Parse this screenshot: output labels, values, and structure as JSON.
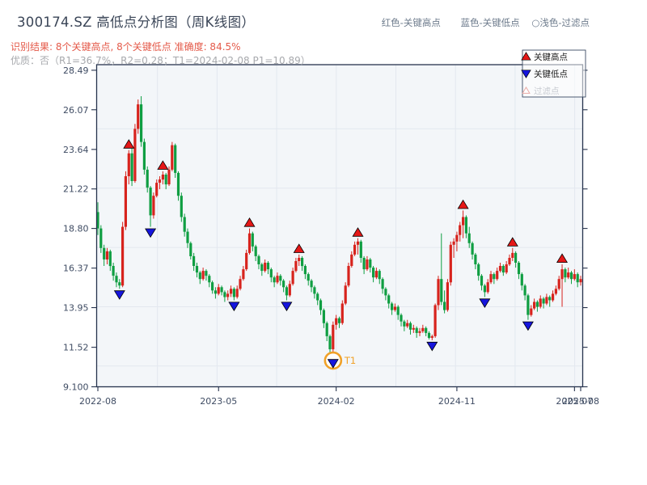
{
  "header": {
    "title": "300174.SZ 高低点分析图（周K线图）",
    "color_key": [
      "红色-关键高点",
      "蓝色-关键低点",
      "○浅色-过滤点"
    ],
    "result_line": "识别结果: 8个关键高点, 8个关键低点  准确度: 84.5%",
    "quality_line": "优质：否（R1=36.7%，R2=0.28；T1=2024-02-08 P1=10.89）"
  },
  "legend_box": {
    "items": [
      {
        "name": "key-high",
        "label": "关键高点",
        "marker": "triangle-up",
        "fill": "#e51717",
        "edge": "#000000",
        "text_color": "#1c1c1c"
      },
      {
        "name": "key-low",
        "label": "关键低点",
        "marker": "triangle-down",
        "fill": "#1515dd",
        "edge": "#000000",
        "text_color": "#1c1c1c"
      },
      {
        "name": "filtered",
        "label": "过滤点",
        "marker": "triangle-up-open",
        "fill": "#ffffff",
        "edge": "#e9a9a4",
        "text_color": "#c7cbd1"
      }
    ]
  },
  "chart_data": {
    "type": "candlestick",
    "symbol": "300174.SZ",
    "timeframe": "weekly",
    "grid": true,
    "legend_position": "top-right",
    "up_color": "#d7231d",
    "down_color": "#0f9e42",
    "key_high_color": "#e51717",
    "key_low_color": "#1515dd",
    "plot_bg": "#f3f6f9",
    "grid_color": "#e3e8ef",
    "spine_color": "#26334d",
    "axis_text_color": "#3f4c63",
    "ylim": [
      9.1,
      28.49
    ],
    "y_ticks": [
      {
        "label": "28.49",
        "value": 28.49
      },
      {
        "label": "26.07",
        "value": 26.07
      },
      {
        "label": "23.64",
        "value": 23.64
      },
      {
        "label": "21.22",
        "value": 21.22
      },
      {
        "label": "18.80",
        "value": 18.8
      },
      {
        "label": "16.37",
        "value": 16.37
      },
      {
        "label": "13.95",
        "value": 13.95
      },
      {
        "label": "11.52",
        "value": 11.52
      },
      {
        "label": "9.100",
        "value": 9.1
      }
    ],
    "x_ticks": [
      {
        "label": "2022-08",
        "week": 0
      },
      {
        "label": "2023-05",
        "week": 39
      },
      {
        "label": "2024-02",
        "week": 77
      },
      {
        "label": "2024-11",
        "week": 116
      },
      {
        "label": "2025-07",
        "week": 154
      },
      {
        "label": "2025-08",
        "week": 156
      }
    ],
    "candles_ohlc": [
      [
        19.8,
        20.4,
        18.4,
        18.8
      ],
      [
        18.8,
        19.0,
        17.3,
        17.6
      ],
      [
        17.6,
        17.8,
        16.5,
        16.9
      ],
      [
        16.9,
        17.6,
        16.6,
        17.4
      ],
      [
        17.4,
        17.5,
        16.2,
        16.5
      ],
      [
        16.5,
        16.7,
        15.6,
        15.9
      ],
      [
        15.9,
        16.1,
        15.2,
        15.5
      ],
      [
        15.5,
        15.7,
        15.1,
        15.3
      ],
      [
        15.3,
        19.2,
        15.2,
        18.9
      ],
      [
        18.9,
        22.3,
        18.7,
        22.0
      ],
      [
        22.0,
        23.6,
        21.5,
        23.4
      ],
      [
        23.4,
        23.7,
        21.4,
        21.7
      ],
      [
        21.7,
        25.2,
        21.6,
        24.9
      ],
      [
        24.9,
        26.7,
        24.6,
        26.4
      ],
      [
        26.4,
        26.9,
        23.8,
        24.1
      ],
      [
        24.1,
        24.3,
        22.1,
        22.4
      ],
      [
        22.4,
        22.6,
        21.0,
        21.3
      ],
      [
        21.3,
        21.4,
        18.9,
        19.6
      ],
      [
        19.6,
        21.0,
        19.4,
        20.8
      ],
      [
        20.8,
        21.8,
        20.7,
        21.6
      ],
      [
        21.6,
        22.0,
        21.2,
        21.8
      ],
      [
        21.8,
        22.3,
        21.5,
        22.1
      ],
      [
        22.1,
        22.2,
        21.2,
        21.5
      ],
      [
        21.5,
        22.6,
        21.4,
        22.4
      ],
      [
        22.4,
        24.1,
        22.3,
        23.9
      ],
      [
        23.9,
        24.0,
        21.9,
        22.2
      ],
      [
        22.2,
        22.3,
        20.5,
        20.8
      ],
      [
        20.8,
        21.0,
        19.2,
        19.5
      ],
      [
        19.5,
        19.7,
        18.3,
        18.6
      ],
      [
        18.6,
        18.8,
        17.6,
        17.9
      ],
      [
        17.9,
        18.0,
        16.9,
        17.1
      ],
      [
        17.1,
        17.3,
        16.2,
        16.5
      ],
      [
        16.5,
        16.7,
        15.8,
        16.1
      ],
      [
        16.1,
        16.2,
        15.4,
        15.7
      ],
      [
        15.7,
        16.4,
        15.6,
        16.2
      ],
      [
        16.2,
        16.3,
        15.6,
        15.9
      ],
      [
        15.9,
        16.0,
        15.2,
        15.5
      ],
      [
        15.5,
        15.6,
        14.8,
        15.0
      ],
      [
        15.0,
        15.2,
        14.5,
        14.8
      ],
      [
        14.8,
        15.4,
        14.7,
        15.2
      ],
      [
        15.2,
        15.3,
        14.7,
        14.9
      ],
      [
        14.9,
        15.0,
        14.3,
        14.6
      ],
      [
        14.6,
        15.0,
        14.4,
        14.8
      ],
      [
        14.8,
        15.3,
        14.6,
        15.1
      ],
      [
        15.1,
        15.2,
        14.4,
        14.6
      ],
      [
        14.6,
        15.3,
        14.5,
        15.1
      ],
      [
        15.1,
        15.9,
        15.0,
        15.7
      ],
      [
        15.7,
        16.5,
        15.6,
        16.3
      ],
      [
        16.3,
        17.5,
        16.2,
        17.3
      ],
      [
        17.3,
        18.8,
        17.2,
        18.5
      ],
      [
        18.5,
        18.6,
        17.4,
        17.7
      ],
      [
        17.7,
        17.8,
        16.8,
        17.1
      ],
      [
        17.1,
        17.2,
        16.3,
        16.6
      ],
      [
        16.6,
        16.7,
        15.9,
        16.2
      ],
      [
        16.2,
        16.9,
        16.1,
        16.7
      ],
      [
        16.7,
        16.8,
        16.0,
        16.3
      ],
      [
        16.3,
        16.4,
        15.5,
        15.8
      ],
      [
        15.8,
        15.9,
        15.2,
        15.5
      ],
      [
        15.5,
        16.1,
        15.4,
        15.9
      ],
      [
        15.9,
        16.0,
        15.3,
        15.6
      ],
      [
        15.6,
        15.7,
        14.9,
        15.2
      ],
      [
        15.2,
        15.3,
        14.4,
        14.7
      ],
      [
        14.7,
        15.6,
        14.6,
        15.4
      ],
      [
        15.4,
        16.4,
        15.3,
        16.2
      ],
      [
        16.2,
        17.0,
        16.1,
        16.8
      ],
      [
        16.8,
        17.2,
        16.5,
        17.0
      ],
      [
        17.0,
        17.1,
        16.2,
        16.5
      ],
      [
        16.5,
        16.6,
        15.7,
        16.0
      ],
      [
        16.0,
        16.1,
        15.3,
        15.6
      ],
      [
        15.6,
        15.7,
        14.9,
        15.2
      ],
      [
        15.2,
        15.3,
        14.5,
        14.8
      ],
      [
        14.8,
        14.9,
        14.1,
        14.4
      ],
      [
        14.4,
        14.5,
        13.5,
        13.8
      ],
      [
        13.8,
        13.9,
        12.7,
        13.0
      ],
      [
        13.0,
        13.1,
        11.9,
        12.2
      ],
      [
        12.2,
        12.3,
        11.1,
        11.4
      ],
      [
        11.4,
        13.1,
        10.89,
        12.9
      ],
      [
        12.9,
        13.5,
        12.6,
        13.3
      ],
      [
        13.3,
        13.4,
        12.7,
        13.0
      ],
      [
        13.0,
        14.4,
        12.9,
        14.2
      ],
      [
        14.2,
        15.5,
        14.1,
        15.3
      ],
      [
        15.3,
        16.7,
        15.2,
        16.5
      ],
      [
        16.5,
        17.4,
        16.4,
        17.2
      ],
      [
        17.2,
        18.0,
        17.1,
        17.8
      ],
      [
        17.8,
        18.2,
        17.2,
        18.0
      ],
      [
        18.0,
        18.1,
        16.7,
        17.0
      ],
      [
        17.0,
        17.1,
        16.0,
        16.3
      ],
      [
        16.3,
        17.1,
        16.2,
        16.9
      ],
      [
        16.9,
        17.0,
        16.1,
        16.4
      ],
      [
        16.4,
        16.5,
        15.5,
        15.8
      ],
      [
        15.8,
        16.4,
        15.7,
        16.2
      ],
      [
        16.2,
        16.3,
        15.4,
        15.7
      ],
      [
        15.7,
        15.8,
        14.8,
        15.1
      ],
      [
        15.1,
        15.2,
        14.4,
        14.7
      ],
      [
        14.7,
        14.8,
        13.9,
        14.2
      ],
      [
        14.2,
        14.3,
        13.5,
        13.8
      ],
      [
        13.8,
        14.2,
        13.7,
        14.0
      ],
      [
        14.0,
        14.1,
        13.2,
        13.5
      ],
      [
        13.5,
        13.6,
        12.8,
        13.1
      ],
      [
        13.1,
        13.2,
        12.5,
        12.8
      ],
      [
        12.8,
        13.2,
        12.7,
        13.0
      ],
      [
        13.0,
        13.1,
        12.3,
        12.6
      ],
      [
        12.6,
        12.9,
        12.4,
        12.7
      ],
      [
        12.7,
        12.8,
        12.1,
        12.4
      ],
      [
        12.4,
        12.7,
        12.2,
        12.5
      ],
      [
        12.5,
        12.9,
        12.4,
        12.7
      ],
      [
        12.7,
        12.8,
        12.2,
        12.4
      ],
      [
        12.4,
        12.5,
        12.0,
        12.1
      ],
      [
        12.1,
        12.3,
        11.95,
        12.2
      ],
      [
        12.2,
        14.2,
        12.1,
        14.1
      ],
      [
        14.1,
        15.9,
        13.8,
        15.7
      ],
      [
        15.7,
        18.5,
        14.1,
        14.3
      ],
      [
        14.3,
        15.0,
        13.6,
        13.8
      ],
      [
        13.8,
        15.7,
        13.7,
        15.5
      ],
      [
        15.5,
        18.0,
        15.3,
        17.8
      ],
      [
        17.8,
        18.2,
        17.0,
        18.0
      ],
      [
        18.0,
        18.6,
        17.4,
        18.4
      ],
      [
        18.4,
        19.2,
        18.0,
        19.0
      ],
      [
        19.0,
        19.9,
        18.2,
        19.5
      ],
      [
        19.5,
        19.6,
        18.2,
        18.5
      ],
      [
        18.5,
        18.9,
        17.6,
        17.9
      ],
      [
        17.9,
        18.0,
        16.9,
        17.2
      ],
      [
        17.2,
        17.3,
        16.3,
        16.6
      ],
      [
        16.6,
        16.7,
        15.6,
        15.9
      ],
      [
        15.9,
        16.0,
        15.0,
        15.3
      ],
      [
        15.3,
        15.4,
        14.6,
        14.9
      ],
      [
        14.9,
        15.7,
        14.8,
        15.5
      ],
      [
        15.5,
        16.2,
        15.4,
        16.0
      ],
      [
        16.0,
        16.1,
        15.4,
        15.7
      ],
      [
        15.7,
        16.4,
        15.6,
        16.2
      ],
      [
        16.2,
        16.7,
        16.1,
        16.5
      ],
      [
        16.5,
        16.6,
        15.9,
        16.1
      ],
      [
        16.1,
        16.8,
        16.0,
        16.6
      ],
      [
        16.6,
        17.2,
        16.5,
        17.0
      ],
      [
        17.0,
        17.6,
        16.8,
        17.3
      ],
      [
        17.3,
        17.4,
        16.4,
        16.7
      ],
      [
        16.7,
        16.8,
        15.7,
        16.0
      ],
      [
        16.0,
        16.1,
        15.0,
        15.3
      ],
      [
        15.3,
        15.4,
        14.4,
        14.7
      ],
      [
        14.7,
        14.8,
        13.2,
        13.5
      ],
      [
        13.5,
        14.1,
        13.4,
        13.9
      ],
      [
        13.9,
        14.5,
        13.8,
        14.3
      ],
      [
        14.3,
        14.4,
        13.7,
        14.0
      ],
      [
        14.0,
        14.7,
        13.9,
        14.5
      ],
      [
        14.5,
        14.6,
        13.9,
        14.2
      ],
      [
        14.2,
        14.8,
        14.1,
        14.6
      ],
      [
        14.6,
        14.7,
        14.0,
        14.4
      ],
      [
        14.4,
        15.0,
        14.3,
        14.8
      ],
      [
        14.8,
        15.3,
        14.7,
        15.1
      ],
      [
        15.1,
        15.9,
        15.0,
        15.7
      ],
      [
        15.7,
        16.6,
        14.0,
        16.3
      ],
      [
        16.3,
        16.4,
        15.5,
        15.8
      ],
      [
        15.8,
        16.4,
        15.7,
        16.1
      ],
      [
        16.1,
        16.2,
        15.4,
        15.7
      ],
      [
        15.7,
        16.3,
        15.6,
        16.0
      ],
      [
        16.0,
        16.1,
        15.2,
        15.5
      ],
      [
        15.5,
        15.9,
        15.3,
        15.7
      ]
    ],
    "key_highs": [
      {
        "week": 10,
        "price": 23.6
      },
      {
        "week": 21,
        "price": 22.3
      },
      {
        "week": 49,
        "price": 18.8
      },
      {
        "week": 65,
        "price": 17.2
      },
      {
        "week": 84,
        "price": 18.2
      },
      {
        "week": 118,
        "price": 19.9
      },
      {
        "week": 134,
        "price": 17.6
      },
      {
        "week": 150,
        "price": 16.6
      }
    ],
    "key_lows": [
      {
        "week": 7,
        "price": 15.1
      },
      {
        "week": 17,
        "price": 18.9
      },
      {
        "week": 44,
        "price": 14.4
      },
      {
        "week": 61,
        "price": 14.4
      },
      {
        "week": 76,
        "price": 10.89
      },
      {
        "week": 108,
        "price": 11.95
      },
      {
        "week": 125,
        "price": 14.6
      },
      {
        "week": 139,
        "price": 13.2
      }
    ],
    "annotation": {
      "label": "T1",
      "week": 76,
      "price": 10.89,
      "date": "2024-02-08",
      "color": "#f0a128"
    }
  }
}
